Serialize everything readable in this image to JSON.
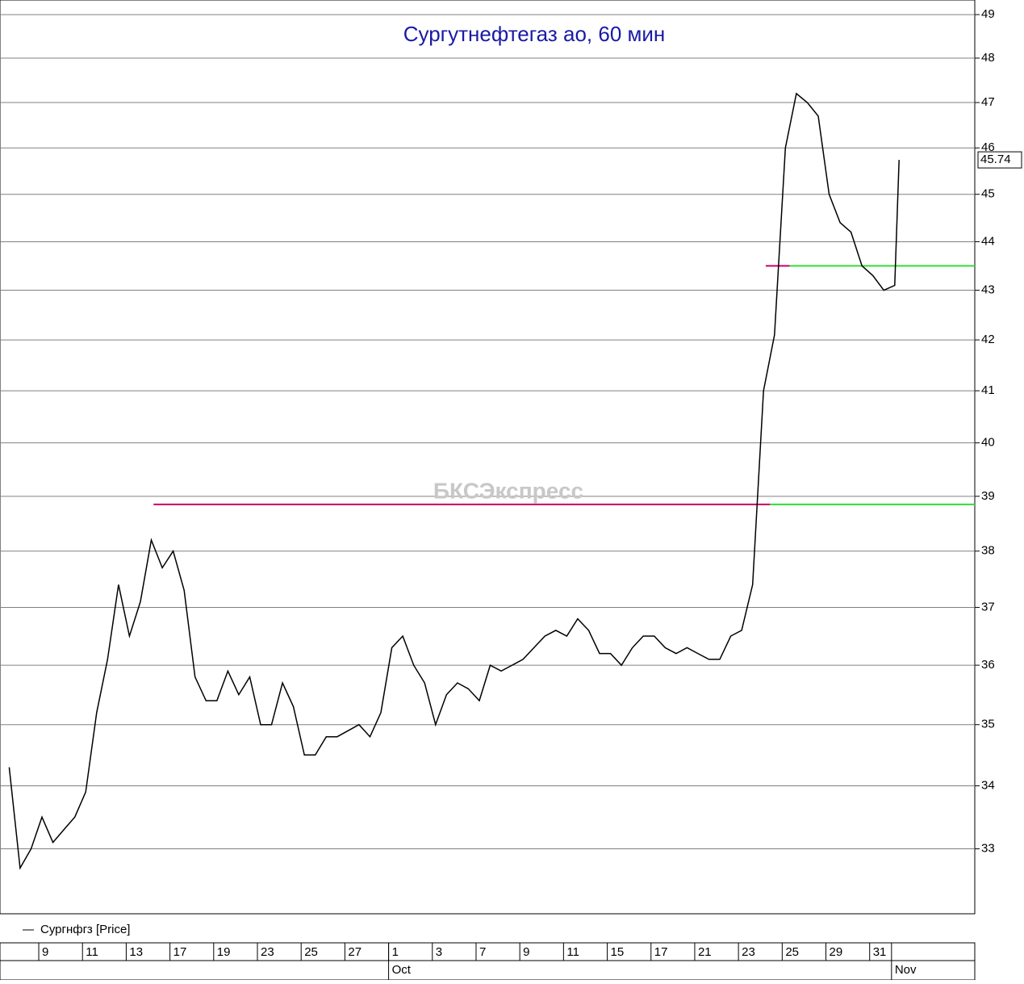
{
  "chart_data": {
    "type": "line",
    "title": "Сургутнефтегаз ао, 60 мин",
    "watermark": "БКСЭкспресс",
    "log_scale": true,
    "grid": true,
    "ylim": [
      32.0,
      49.34
    ],
    "yticks": [
      33,
      34,
      35,
      36,
      37,
      38,
      39,
      40,
      41,
      42,
      43,
      44,
      45,
      46,
      47,
      48,
      49
    ],
    "xlim": [
      -1.92,
      42.66
    ],
    "xticks": [
      {
        "value": 0,
        "label": "9"
      },
      {
        "value": 2,
        "label": "11"
      },
      {
        "value": 4,
        "label": "13"
      },
      {
        "value": 6,
        "label": "17"
      },
      {
        "value": 8,
        "label": "19"
      },
      {
        "value": 10,
        "label": "23"
      },
      {
        "value": 12,
        "label": "25"
      },
      {
        "value": 14,
        "label": "27"
      },
      {
        "value": 16,
        "label": "1"
      },
      {
        "value": 18,
        "label": "3"
      },
      {
        "value": 20,
        "label": "7"
      },
      {
        "value": 22,
        "label": "9"
      },
      {
        "value": 24,
        "label": "11"
      },
      {
        "value": 26,
        "label": "15"
      },
      {
        "value": 28,
        "label": "17"
      },
      {
        "value": 30,
        "label": "21"
      },
      {
        "value": 32,
        "label": "23"
      },
      {
        "value": 34,
        "label": "25"
      },
      {
        "value": 36,
        "label": "29"
      },
      {
        "value": 38,
        "label": "31"
      }
    ],
    "month_ticks": [
      {
        "value": 16,
        "label": "Oct"
      },
      {
        "value": 39,
        "label": "Nov"
      }
    ],
    "series": [
      {
        "name": "Сургнфгз [Price]",
        "color": "#000000",
        "x": [
          -1.5,
          -1,
          -0.5,
          0,
          0.5,
          1,
          1.5,
          2,
          2.5,
          3,
          3.5,
          4,
          4.5,
          5,
          5.5,
          6,
          6.5,
          7,
          7.5,
          8,
          8.5,
          9,
          9.5,
          10,
          10.5,
          11,
          11.5,
          12,
          12.5,
          13,
          13.5,
          14,
          14.5,
          15,
          15.5,
          16,
          16.5,
          17,
          17.5,
          18,
          18.5,
          19,
          19.5,
          20,
          20.5,
          21,
          21.5,
          22,
          22.5,
          23,
          23.5,
          24,
          24.5,
          25,
          25.5,
          26,
          26.5,
          27,
          27.5,
          28,
          28.5,
          29,
          29.5,
          30,
          30.5,
          31,
          31.5,
          32,
          32.5,
          33,
          33.5,
          34,
          34.5,
          35,
          35.5,
          36,
          36.5,
          37,
          37.5,
          38,
          38.5,
          39,
          39.2
        ],
        "values": [
          34.3,
          32.7,
          33.0,
          33.5,
          33.1,
          33.3,
          33.5,
          33.9,
          35.2,
          36.1,
          37.4,
          36.5,
          37.1,
          38.2,
          37.7,
          38.0,
          37.3,
          35.8,
          35.4,
          35.4,
          35.9,
          35.5,
          35.8,
          35.0,
          35.0,
          35.7,
          35.3,
          34.5,
          34.5,
          34.8,
          34.8,
          34.9,
          35.0,
          34.8,
          35.2,
          36.3,
          36.5,
          36.0,
          35.7,
          35.0,
          35.5,
          35.7,
          35.6,
          35.4,
          36.0,
          35.9,
          36.0,
          36.1,
          36.3,
          36.5,
          36.6,
          36.5,
          36.8,
          36.6,
          36.2,
          36.2,
          36.0,
          36.3,
          36.5,
          36.5,
          36.3,
          36.2,
          36.3,
          36.2,
          36.1,
          36.1,
          36.5,
          36.6,
          37.4,
          41.0,
          42.1,
          46.0,
          47.2,
          47.0,
          46.7,
          45.0,
          44.4,
          44.2,
          43.5,
          43.3,
          43.0,
          43.1,
          45.74
        ]
      }
    ],
    "levels": [
      {
        "value": 38.85,
        "x": [
          5.1,
          33.3,
          42.66
        ],
        "colors": [
          "#cc0066",
          "#33dd33"
        ]
      },
      {
        "value": 43.5,
        "x": [
          33.1,
          34.2,
          42.66
        ],
        "colors": [
          "#cc0066",
          "#33dd33"
        ]
      }
    ]
  }
}
